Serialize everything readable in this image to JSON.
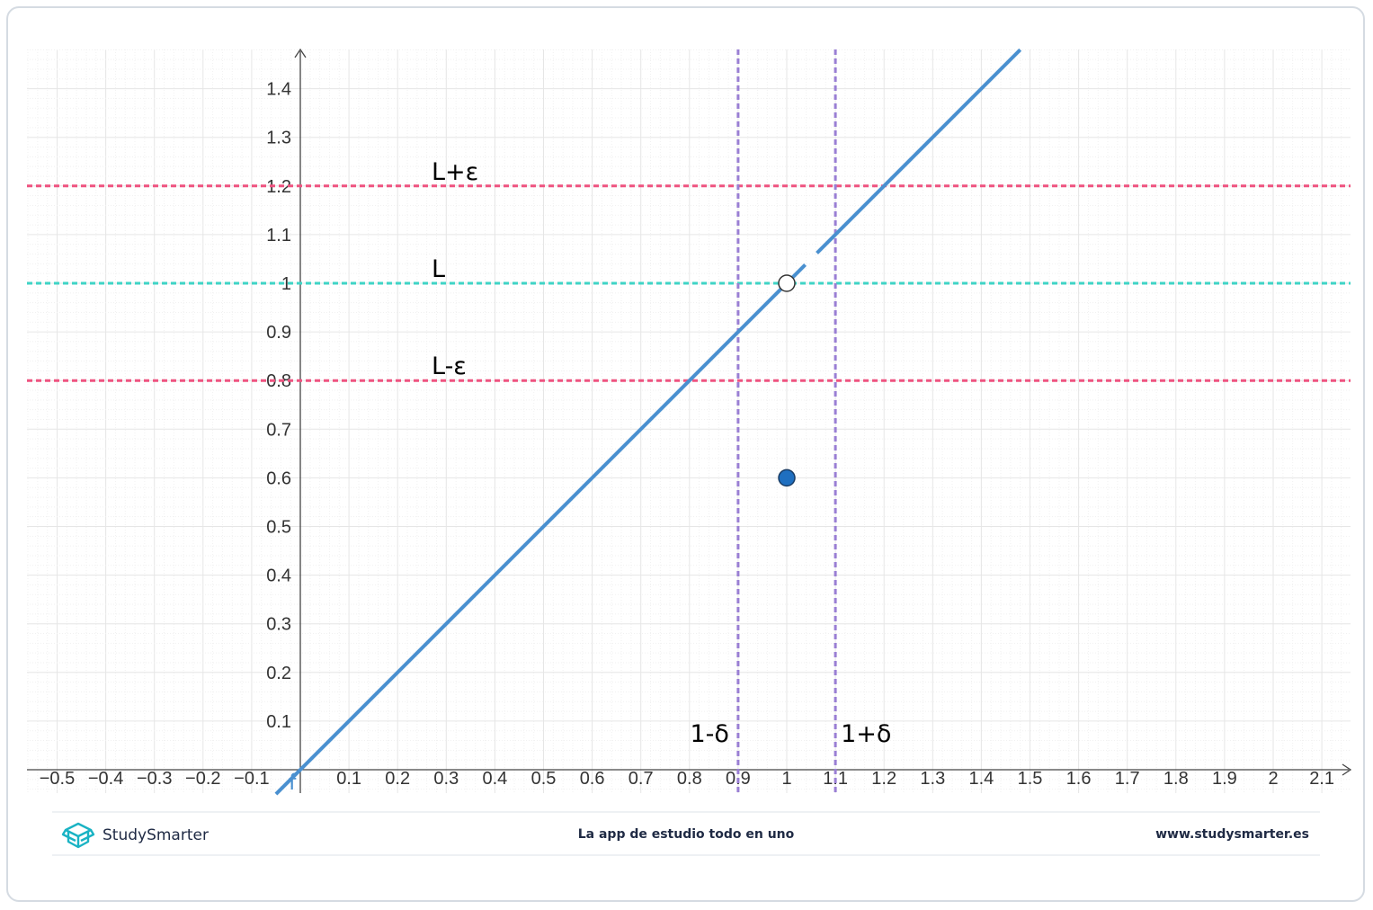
{
  "chart_data": {
    "type": "line",
    "title": "",
    "xlabel": "",
    "ylabel": "",
    "xlim": [
      -0.56,
      2.16
    ],
    "ylim": [
      -0.05,
      1.48
    ],
    "grid": true,
    "x_ticks": [
      "−0.5",
      "−0.4",
      "−0.3",
      "−0.2",
      "−0.1",
      "0.1",
      "0.2",
      "0.3",
      "0.4",
      "0.5",
      "0.6",
      "0.7",
      "0.8",
      "0.9",
      "1",
      "1.1",
      "1.2",
      "1.3",
      "1.4",
      "1.5",
      "1.6",
      "1.7",
      "1.8",
      "1.9",
      "2",
      "2.1"
    ],
    "x_tick_values": [
      -0.5,
      -0.4,
      -0.3,
      -0.2,
      -0.1,
      0.1,
      0.2,
      0.3,
      0.4,
      0.5,
      0.6,
      0.7,
      0.8,
      0.9,
      1,
      1.1,
      1.2,
      1.3,
      1.4,
      1.5,
      1.6,
      1.7,
      1.8,
      1.9,
      2,
      2.1
    ],
    "y_ticks": [
      "0.1",
      "0.2",
      "0.3",
      "0.4",
      "0.5",
      "0.6",
      "0.7",
      "0.8",
      "0.9",
      "1",
      "1.1",
      "1.2",
      "1.3",
      "1.4"
    ],
    "y_tick_values": [
      0.1,
      0.2,
      0.3,
      0.4,
      0.5,
      0.6,
      0.7,
      0.8,
      0.9,
      1,
      1.1,
      1.2,
      1.3,
      1.4
    ],
    "function_label": "f",
    "function_line": {
      "x": [
        -0.05,
        1.48
      ],
      "y": [
        -0.05,
        1.48
      ],
      "color": "#4a90d0",
      "gap_at": [
        1.05,
        1.0
      ]
    },
    "hollow_point": {
      "x": 1,
      "y": 1
    },
    "filled_point": {
      "x": 1,
      "y": 0.6,
      "color": "#1f6fc0"
    },
    "horizontal_lines": [
      {
        "y": 1.2,
        "label": "L+ε",
        "color": "#ef5380"
      },
      {
        "y": 1.0,
        "label": "L",
        "color": "#3fd4c6"
      },
      {
        "y": 0.8,
        "label": "L-ε",
        "color": "#ef5380"
      }
    ],
    "vertical_lines": [
      {
        "x": 0.9,
        "label": "1-δ",
        "color": "#9a7fd4"
      },
      {
        "x": 1.1,
        "label": "1+δ",
        "color": "#9a7fd4"
      }
    ]
  },
  "footer": {
    "brand": "StudySmarter",
    "tagline": "La app de estudio todo en uno",
    "url": "www.studysmarter.es",
    "brand_color": "#1ab3c4",
    "brand_icon": "open-box-icon"
  }
}
